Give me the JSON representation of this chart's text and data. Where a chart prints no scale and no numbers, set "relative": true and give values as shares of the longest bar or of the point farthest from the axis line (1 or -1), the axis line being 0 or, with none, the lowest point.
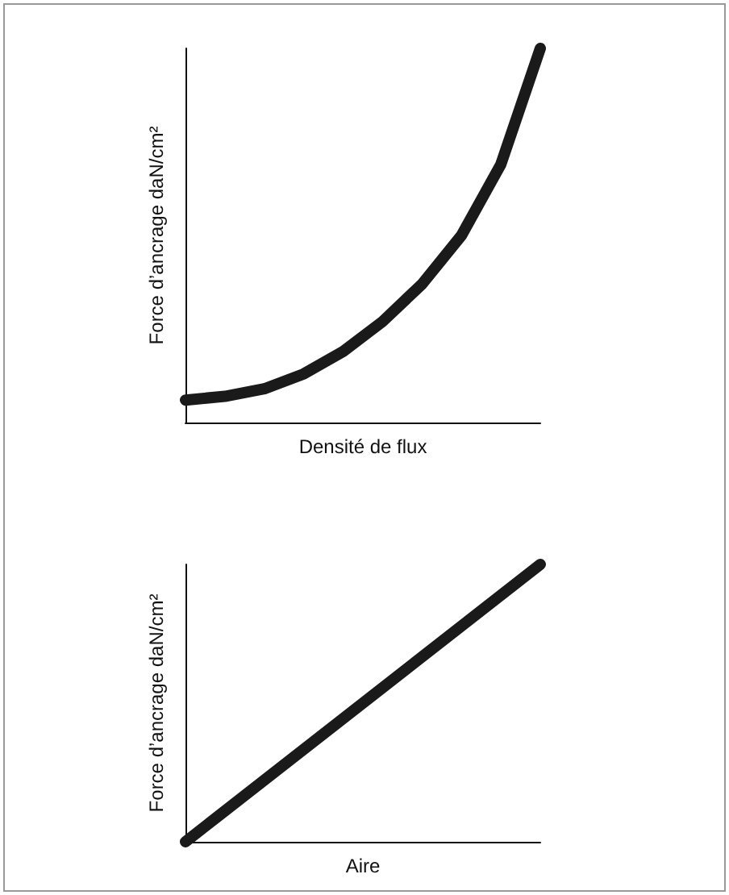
{
  "chart_data": [
    {
      "type": "line",
      "relative": true,
      "xlabel": "Densité de flux",
      "ylabel": "Force d’ancrage daN/cm²",
      "categories": [
        null,
        null,
        null,
        null,
        null,
        null,
        null,
        null,
        null,
        null
      ],
      "series": [
        {
          "color": "#1a1a1a",
          "values": [
            0.06,
            0.07,
            0.09,
            0.13,
            0.19,
            0.27,
            0.37,
            0.5,
            0.69,
            1.0
          ]
        }
      ],
      "tick_labels": false,
      "grid": false,
      "line_style": "solid"
    },
    {
      "type": "line",
      "relative": true,
      "xlabel": "Aire",
      "ylabel": "Force d’ancrage daN/cm²",
      "categories": [
        null,
        null
      ],
      "series": [
        {
          "color": "#1a1a1a",
          "values": [
            0,
            1
          ]
        }
      ],
      "tick_labels": false,
      "grid": false,
      "line_style": "solid"
    }
  ]
}
